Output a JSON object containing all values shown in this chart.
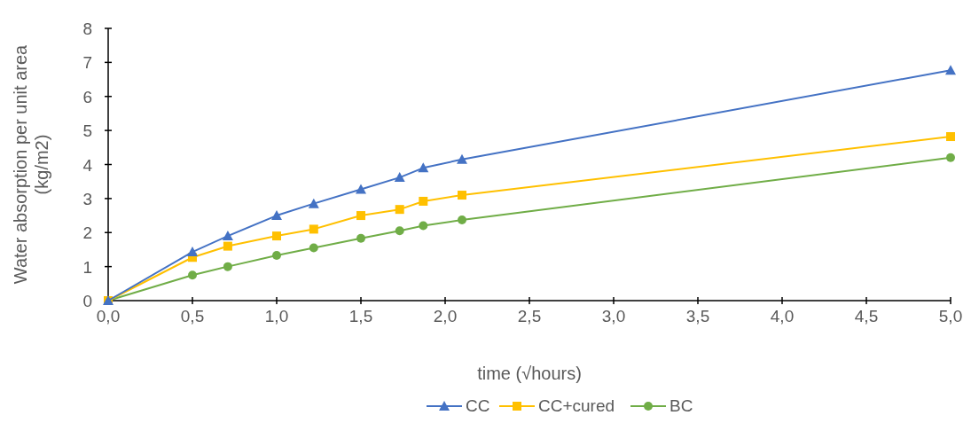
{
  "chart_data": {
    "type": "line",
    "xlabel": "time (√hours)",
    "ylabel": "Water absorption per unit area\n(kg/m2)",
    "x": [
      0,
      0.5,
      0.71,
      1,
      1.22,
      1.5,
      1.73,
      1.87,
      2.1,
      5
    ],
    "xlim": [
      0,
      5
    ],
    "xticks": [
      {
        "value": 0,
        "label": "0,0"
      },
      {
        "value": 0.5,
        "label": "0,5"
      },
      {
        "value": 1,
        "label": "1,0"
      },
      {
        "value": 1.5,
        "label": "1,5"
      },
      {
        "value": 2,
        "label": "2,0"
      },
      {
        "value": 2.5,
        "label": "2,5"
      },
      {
        "value": 3,
        "label": "3,0"
      },
      {
        "value": 3.5,
        "label": "3,5"
      },
      {
        "value": 4,
        "label": "4,0"
      },
      {
        "value": 4.5,
        "label": "4,5"
      },
      {
        "value": 5,
        "label": "5,0"
      }
    ],
    "ylim": [
      0,
      8
    ],
    "yticks": [
      0,
      1,
      2,
      3,
      4,
      5,
      6,
      7,
      8
    ],
    "grid": false,
    "legend": "bottom",
    "line_style": "solid",
    "series": [
      {
        "name": "CC",
        "color": "#4472c4",
        "marker": "triangle",
        "values": [
          0,
          1.43,
          1.9,
          2.5,
          2.85,
          3.27,
          3.62,
          3.9,
          4.15,
          6.77
        ]
      },
      {
        "name": "CC+cured",
        "color": "#ffc000",
        "marker": "square",
        "values": [
          0,
          1.27,
          1.6,
          1.9,
          2.1,
          2.5,
          2.68,
          2.92,
          3.1,
          4.82
        ]
      },
      {
        "name": "BC",
        "color": "#70ad47",
        "marker": "circle",
        "values": [
          0,
          0.75,
          1.0,
          1.33,
          1.55,
          1.83,
          2.05,
          2.2,
          2.37,
          4.2
        ]
      }
    ]
  }
}
